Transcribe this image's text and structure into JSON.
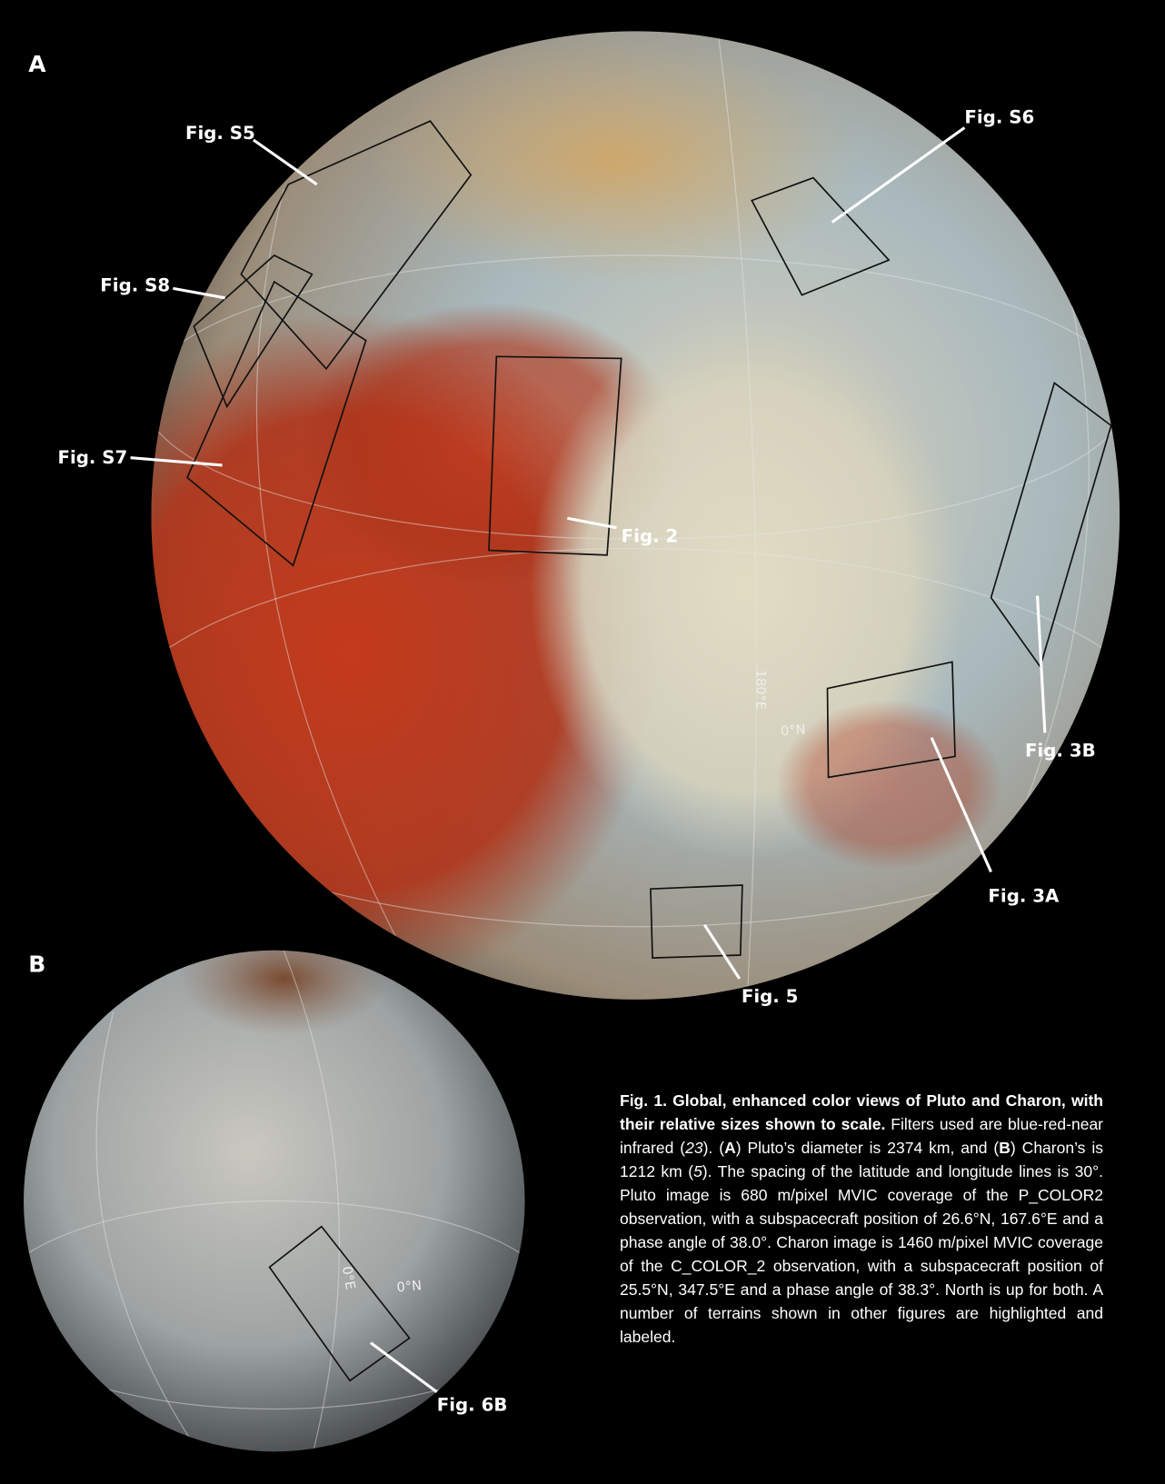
{
  "panels": {
    "a": "A",
    "b": "B"
  },
  "pluto_labels": [
    "Fig. S5",
    "Fig. S6",
    "Fig. S8",
    "Fig. S7",
    "Fig. 2",
    "Fig. 3B",
    "Fig. 3A",
    "Fig. 5"
  ],
  "pluto_grid_labels": [
    "180°E",
    "0°N"
  ],
  "charon_labels": [
    "Fig. 6B"
  ],
  "charon_grid_labels": [
    "0°E",
    "0°N"
  ],
  "caption": {
    "title": "Fig. 1. Global, enhanced color views of Pluto and Charon, with their relative sizes shown to scale.",
    "segments": [
      " Filters used are blue-red-near infrared (",
      "23",
      "). (",
      "A",
      ") Pluto’s diameter is 2374 km, and (",
      "B",
      ") Charon’s is 1212 km (",
      "5",
      "). The spacing of the latitude and longitude lines is 30°. Pluto image is 680 m/pixel MVIC coverage of the P_COLOR2 observation, with a subspacecraft position of 26.6°N, 167.6°E and a phase angle of 38.0°. Charon image is 1460 m/pixel MVIC coverage of the C_COLOR_2 observation, with a subspacecraft position of 25.5°N, 347.5°E and a phase angle of 38.3°. North is up for both. A number of terrains shown in other figures are highlighted and labeled."
    ]
  }
}
